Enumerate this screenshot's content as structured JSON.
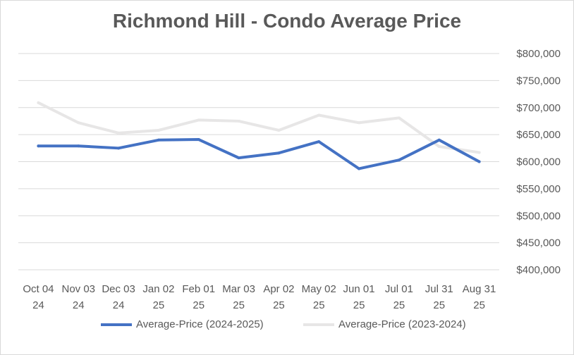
{
  "chart_data": {
    "type": "line",
    "title": "Richmond Hill - Condo Average Price",
    "xlabel": "",
    "ylabel": "",
    "y_axis_position": "right",
    "ylim": [
      400000,
      800000
    ],
    "y_ticks": [
      "$400,000",
      "$450,000",
      "$500,000",
      "$550,000",
      "$600,000",
      "$650,000",
      "$700,000",
      "$750,000",
      "$800,000"
    ],
    "y_tick_values": [
      400000,
      450000,
      500000,
      550000,
      600000,
      650000,
      700000,
      750000,
      800000
    ],
    "categories": [
      [
        "Oct 04",
        "24"
      ],
      [
        "Nov 03",
        "24"
      ],
      [
        "Dec 03",
        "24"
      ],
      [
        "Jan 02",
        "25"
      ],
      [
        "Feb 01",
        "25"
      ],
      [
        "Mar 03",
        "25"
      ],
      [
        "Apr 02",
        "25"
      ],
      [
        "May 02",
        "25"
      ],
      [
        "Jun 01",
        "25"
      ],
      [
        "Jul 01",
        "25"
      ],
      [
        "Jul 31",
        "25"
      ],
      [
        "Aug 31",
        "25"
      ]
    ],
    "grid": true,
    "legend_position": "bottom",
    "series": [
      {
        "name": "Average-Price (2024-2025)",
        "color": "#4472c4",
        "values": [
          629000,
          629000,
          625000,
          640000,
          641000,
          607000,
          616000,
          637000,
          587000,
          603000,
          640000,
          600000
        ]
      },
      {
        "name": "Average-Price (2023-2024)",
        "color": "#e7e6e6",
        "values": [
          709000,
          672000,
          653000,
          658000,
          677000,
          675000,
          658000,
          686000,
          672000,
          681000,
          628000,
          617000
        ]
      }
    ]
  }
}
